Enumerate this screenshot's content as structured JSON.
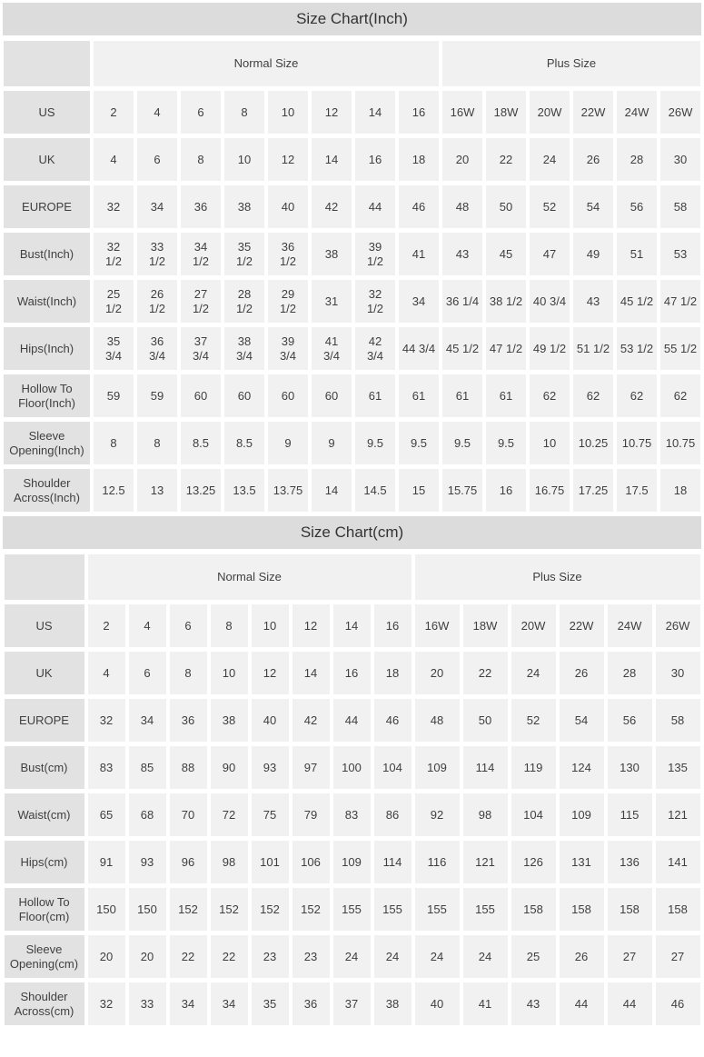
{
  "charts": [
    {
      "title": "Size Chart(Inch)",
      "group_headers": [
        "Normal Size",
        "Plus Size"
      ],
      "rows": [
        {
          "label": "US",
          "values": [
            "2",
            "4",
            "6",
            "8",
            "10",
            "12",
            "14",
            "16",
            "16W",
            "18W",
            "20W",
            "22W",
            "24W",
            "26W"
          ]
        },
        {
          "label": "UK",
          "values": [
            "4",
            "6",
            "8",
            "10",
            "12",
            "14",
            "16",
            "18",
            "20",
            "22",
            "24",
            "26",
            "28",
            "30"
          ]
        },
        {
          "label": "EUROPE",
          "values": [
            "32",
            "34",
            "36",
            "38",
            "40",
            "42",
            "44",
            "46",
            "48",
            "50",
            "52",
            "54",
            "56",
            "58"
          ]
        },
        {
          "label": "Bust(Inch)",
          "values": [
            "32\n1/2",
            "33\n1/2",
            "34\n1/2",
            "35\n1/2",
            "36\n1/2",
            "38",
            "39\n1/2",
            "41",
            "43",
            "45",
            "47",
            "49",
            "51",
            "53"
          ]
        },
        {
          "label": "Waist(Inch)",
          "values": [
            "25\n1/2",
            "26\n1/2",
            "27\n1/2",
            "28\n1/2",
            "29\n1/2",
            "31",
            "32\n1/2",
            "34",
            "36 1/4",
            "38 1/2",
            "40 3/4",
            "43",
            "45 1/2",
            "47 1/2"
          ]
        },
        {
          "label": "Hips(Inch)",
          "values": [
            "35\n3/4",
            "36\n3/4",
            "37\n3/4",
            "38\n3/4",
            "39\n3/4",
            "41\n3/4",
            "42\n3/4",
            "44 3/4",
            "45 1/2",
            "47 1/2",
            "49 1/2",
            "51 1/2",
            "53 1/2",
            "55 1/2"
          ]
        },
        {
          "label": "Hollow To Floor(Inch)",
          "values": [
            "59",
            "59",
            "60",
            "60",
            "60",
            "60",
            "61",
            "61",
            "61",
            "61",
            "62",
            "62",
            "62",
            "62"
          ]
        },
        {
          "label": "Sleeve Opening(Inch)",
          "values": [
            "8",
            "8",
            "8.5",
            "8.5",
            "9",
            "9",
            "9.5",
            "9.5",
            "9.5",
            "9.5",
            "10",
            "10.25",
            "10.75",
            "10.75"
          ]
        },
        {
          "label": "Shoulder Across(Inch)",
          "values": [
            "12.5",
            "13",
            "13.25",
            "13.5",
            "13.75",
            "14",
            "14.5",
            "15",
            "15.75",
            "16",
            "16.75",
            "17.25",
            "17.5",
            "18"
          ]
        }
      ]
    },
    {
      "title": "Size Chart(cm)",
      "group_headers": [
        "Normal Size",
        "Plus Size"
      ],
      "rows": [
        {
          "label": "US",
          "values": [
            "2",
            "4",
            "6",
            "8",
            "10",
            "12",
            "14",
            "16",
            "16W",
            "18W",
            "20W",
            "22W",
            "24W",
            "26W"
          ]
        },
        {
          "label": "UK",
          "values": [
            "4",
            "6",
            "8",
            "10",
            "12",
            "14",
            "16",
            "18",
            "20",
            "22",
            "24",
            "26",
            "28",
            "30"
          ]
        },
        {
          "label": "EUROPE",
          "values": [
            "32",
            "34",
            "36",
            "38",
            "40",
            "42",
            "44",
            "46",
            "48",
            "50",
            "52",
            "54",
            "56",
            "58"
          ]
        },
        {
          "label": "Bust(cm)",
          "values": [
            "83",
            "85",
            "88",
            "90",
            "93",
            "97",
            "100",
            "104",
            "109",
            "114",
            "119",
            "124",
            "130",
            "135"
          ]
        },
        {
          "label": "Waist(cm)",
          "values": [
            "65",
            "68",
            "70",
            "72",
            "75",
            "79",
            "83",
            "86",
            "92",
            "98",
            "104",
            "109",
            "115",
            "121"
          ]
        },
        {
          "label": "Hips(cm)",
          "values": [
            "91",
            "93",
            "96",
            "98",
            "101",
            "106",
            "109",
            "114",
            "116",
            "121",
            "126",
            "131",
            "136",
            "141"
          ]
        },
        {
          "label": "Hollow To Floor(cm)",
          "values": [
            "150",
            "150",
            "152",
            "152",
            "152",
            "152",
            "155",
            "155",
            "155",
            "155",
            "158",
            "158",
            "158",
            "158"
          ]
        },
        {
          "label": "Sleeve Opening(cm)",
          "values": [
            "20",
            "20",
            "22",
            "22",
            "23",
            "23",
            "24",
            "24",
            "24",
            "24",
            "25",
            "26",
            "27",
            "27"
          ]
        },
        {
          "label": "Shoulder Across(cm)",
          "values": [
            "32",
            "33",
            "34",
            "34",
            "35",
            "36",
            "37",
            "38",
            "40",
            "41",
            "43",
            "44",
            "44",
            "46"
          ]
        }
      ]
    }
  ]
}
